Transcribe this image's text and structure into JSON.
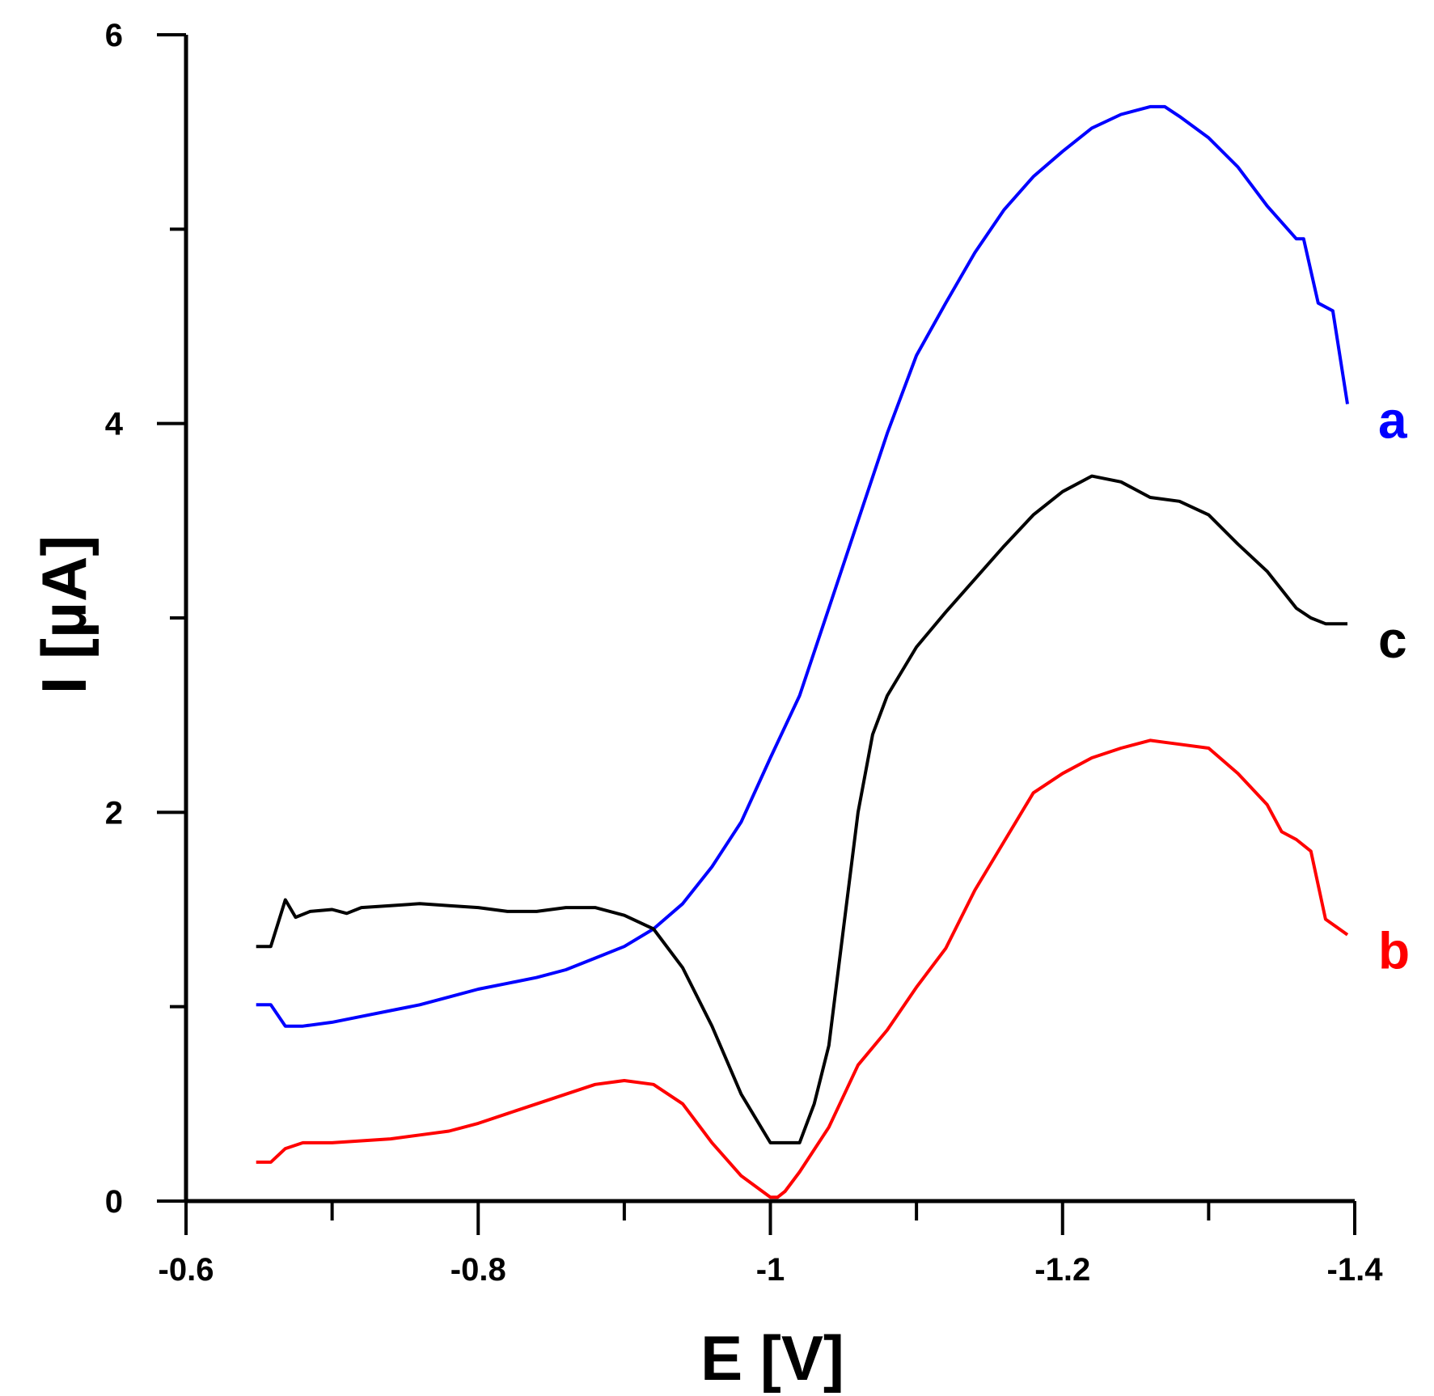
{
  "chart_data": {
    "type": "line",
    "title": "",
    "xlabel": "E [V]",
    "ylabel": "I [µA]",
    "xlim": [
      -0.6,
      -1.4
    ],
    "ylim": [
      0,
      6
    ],
    "x_ticks": [
      -0.6,
      -0.8,
      -1,
      -1.2,
      -1.4
    ],
    "x_tick_labels": [
      "-0.6",
      "-0.8",
      "-1",
      "-1.2",
      "-1.4"
    ],
    "y_ticks": [
      0,
      2,
      4,
      6
    ],
    "y_tick_labels": [
      "0",
      "2",
      "4",
      "6"
    ],
    "grid": false,
    "series": [
      {
        "name": "a",
        "color": "#0000ff",
        "x": [
          -0.648,
          -0.658,
          -0.668,
          -0.68,
          -0.7,
          -0.72,
          -0.74,
          -0.76,
          -0.78,
          -0.8,
          -0.82,
          -0.84,
          -0.86,
          -0.88,
          -0.9,
          -0.92,
          -0.94,
          -0.96,
          -0.98,
          -1.0,
          -1.02,
          -1.04,
          -1.06,
          -1.08,
          -1.1,
          -1.12,
          -1.14,
          -1.16,
          -1.18,
          -1.2,
          -1.22,
          -1.24,
          -1.26,
          -1.27,
          -1.28,
          -1.3,
          -1.32,
          -1.34,
          -1.36,
          -1.365,
          -1.375,
          -1.385,
          -1.395
        ],
        "y": [
          1.01,
          1.01,
          0.9,
          0.9,
          0.92,
          0.95,
          0.98,
          1.01,
          1.05,
          1.09,
          1.12,
          1.15,
          1.19,
          1.25,
          1.31,
          1.4,
          1.53,
          1.72,
          1.95,
          2.28,
          2.6,
          3.05,
          3.5,
          3.95,
          4.35,
          4.62,
          4.88,
          5.1,
          5.27,
          5.4,
          5.52,
          5.59,
          5.63,
          5.63,
          5.58,
          5.47,
          5.32,
          5.12,
          4.95,
          4.95,
          4.62,
          4.58,
          4.1
        ]
      },
      {
        "name": "b",
        "color": "#ff0000",
        "x": [
          -0.648,
          -0.658,
          -0.668,
          -0.68,
          -0.7,
          -0.72,
          -0.74,
          -0.76,
          -0.78,
          -0.8,
          -0.82,
          -0.84,
          -0.86,
          -0.88,
          -0.9,
          -0.92,
          -0.94,
          -0.96,
          -0.98,
          -1.0,
          -1.005,
          -1.01,
          -1.02,
          -1.04,
          -1.06,
          -1.08,
          -1.1,
          -1.12,
          -1.14,
          -1.16,
          -1.18,
          -1.2,
          -1.22,
          -1.24,
          -1.26,
          -1.27,
          -1.28,
          -1.3,
          -1.32,
          -1.34,
          -1.35,
          -1.36,
          -1.37,
          -1.38,
          -1.395
        ],
        "y": [
          0.2,
          0.2,
          0.27,
          0.3,
          0.3,
          0.31,
          0.32,
          0.34,
          0.36,
          0.4,
          0.45,
          0.5,
          0.55,
          0.6,
          0.62,
          0.6,
          0.5,
          0.3,
          0.13,
          0.02,
          0.02,
          0.05,
          0.15,
          0.38,
          0.7,
          0.88,
          1.1,
          1.3,
          1.6,
          1.85,
          2.1,
          2.2,
          2.28,
          2.33,
          2.37,
          2.36,
          2.35,
          2.33,
          2.2,
          2.04,
          1.9,
          1.86,
          1.8,
          1.45,
          1.37
        ]
      },
      {
        "name": "c",
        "color": "#000000",
        "x": [
          -0.648,
          -0.658,
          -0.668,
          -0.675,
          -0.685,
          -0.7,
          -0.71,
          -0.72,
          -0.74,
          -0.76,
          -0.78,
          -0.8,
          -0.82,
          -0.84,
          -0.86,
          -0.88,
          -0.9,
          -0.92,
          -0.94,
          -0.96,
          -0.98,
          -1.0,
          -1.01,
          -1.02,
          -1.03,
          -1.04,
          -1.05,
          -1.06,
          -1.07,
          -1.08,
          -1.1,
          -1.12,
          -1.14,
          -1.16,
          -1.18,
          -1.2,
          -1.22,
          -1.24,
          -1.26,
          -1.28,
          -1.3,
          -1.32,
          -1.34,
          -1.36,
          -1.37,
          -1.38,
          -1.395
        ],
        "y": [
          1.31,
          1.31,
          1.55,
          1.46,
          1.49,
          1.5,
          1.48,
          1.51,
          1.52,
          1.53,
          1.52,
          1.51,
          1.49,
          1.49,
          1.51,
          1.51,
          1.47,
          1.4,
          1.2,
          0.9,
          0.55,
          0.3,
          0.3,
          0.3,
          0.5,
          0.8,
          1.4,
          2.0,
          2.4,
          2.6,
          2.85,
          3.03,
          3.2,
          3.37,
          3.53,
          3.65,
          3.73,
          3.7,
          3.62,
          3.6,
          3.53,
          3.38,
          3.24,
          3.05,
          3.0,
          2.97,
          2.97
        ]
      }
    ]
  }
}
